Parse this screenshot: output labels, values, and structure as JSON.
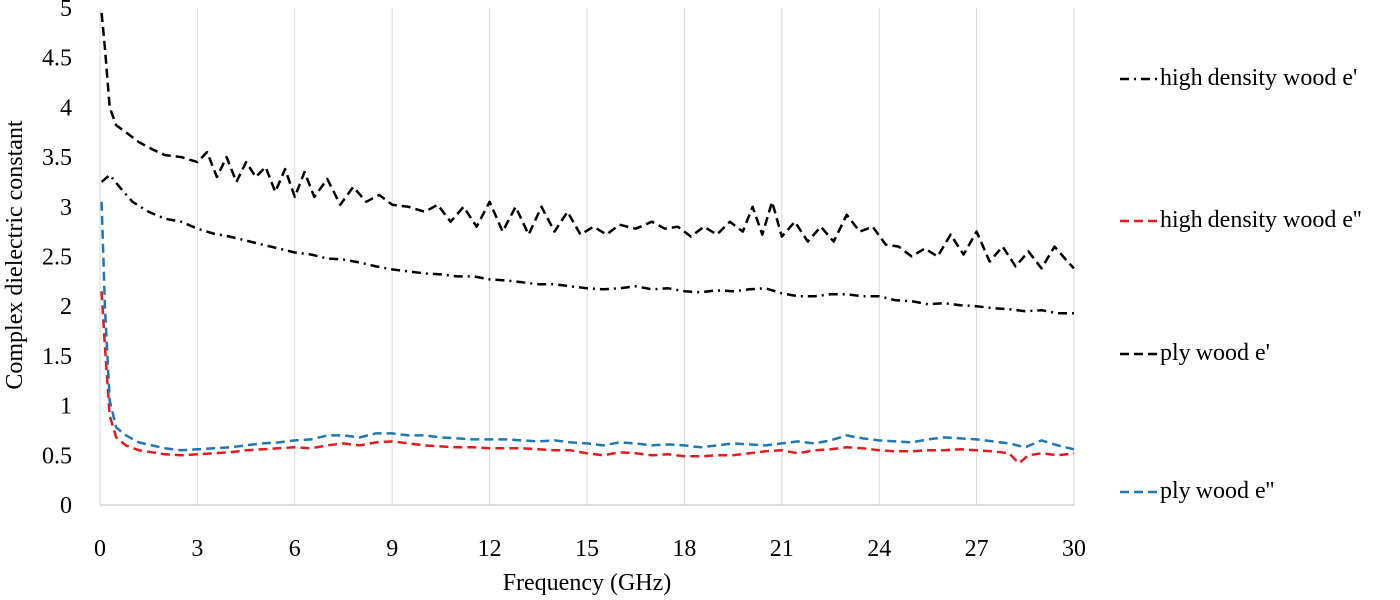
{
  "chart_data": {
    "type": "line",
    "title": "",
    "xlabel": "Frequency (GHz)",
    "ylabel": "Complex dielectric constant",
    "xlim": [
      0,
      30
    ],
    "ylim": [
      0,
      5
    ],
    "xticks": [
      0,
      3,
      6,
      9,
      12,
      15,
      18,
      21,
      24,
      27,
      30
    ],
    "yticks": [
      0,
      0.5,
      1,
      1.5,
      2,
      2.5,
      3,
      3.5,
      4,
      4.5,
      5
    ],
    "ytick_labels": [
      "0",
      "0.5",
      "1",
      "1.5",
      "2",
      "2.5",
      "3",
      "3.5",
      "4",
      "4.5",
      "5"
    ],
    "grid": "vertical",
    "legend_position": "right",
    "series": [
      {
        "name": "high density wood e'",
        "color": "#000000",
        "dash": "dash-dot",
        "x": [
          0.05,
          0.3,
          0.6,
          1,
          1.5,
          2,
          2.5,
          3,
          3.5,
          4,
          4.5,
          5,
          5.5,
          6,
          6.5,
          7,
          7.5,
          8,
          8.5,
          9,
          9.5,
          10,
          10.5,
          11,
          11.5,
          12,
          12.5,
          13,
          13.5,
          14,
          14.5,
          15,
          15.5,
          16,
          16.5,
          17,
          17.5,
          18,
          18.5,
          19,
          19.5,
          20,
          20.5,
          21,
          21.5,
          22,
          22.5,
          23,
          23.5,
          24,
          24.5,
          25,
          25.5,
          26,
          26.5,
          27,
          27.5,
          28,
          28.5,
          29,
          29.5,
          30
        ],
        "values": [
          3.25,
          3.32,
          3.2,
          3.05,
          2.95,
          2.88,
          2.85,
          2.78,
          2.73,
          2.7,
          2.66,
          2.62,
          2.58,
          2.54,
          2.52,
          2.48,
          2.47,
          2.44,
          2.4,
          2.37,
          2.35,
          2.33,
          2.32,
          2.3,
          2.3,
          2.27,
          2.26,
          2.24,
          2.22,
          2.22,
          2.2,
          2.18,
          2.17,
          2.18,
          2.2,
          2.17,
          2.18,
          2.15,
          2.14,
          2.16,
          2.15,
          2.17,
          2.18,
          2.13,
          2.1,
          2.1,
          2.12,
          2.12,
          2.1,
          2.1,
          2.06,
          2.05,
          2.02,
          2.03,
          2.01,
          2.0,
          1.98,
          1.97,
          1.95,
          1.96,
          1.93,
          1.93
        ]
      },
      {
        "name": "high density wood e''",
        "color": "#e41a1c",
        "dash": "dash",
        "x": [
          0.05,
          0.15,
          0.3,
          0.5,
          0.8,
          1.2,
          1.6,
          2,
          2.5,
          3,
          3.5,
          4,
          4.5,
          5,
          5.5,
          6,
          6.5,
          7,
          7.5,
          8,
          8.5,
          9,
          9.5,
          10,
          10.5,
          11,
          11.5,
          12,
          12.5,
          13,
          13.5,
          14,
          14.5,
          15,
          15.5,
          16,
          16.5,
          17,
          17.5,
          18,
          18.5,
          19,
          19.5,
          20,
          20.5,
          21,
          21.5,
          22,
          22.5,
          23,
          23.5,
          24,
          24.5,
          25,
          25.5,
          26,
          26.5,
          27,
          27.5,
          28,
          28.3,
          28.6,
          29,
          29.5,
          30
        ],
        "values": [
          2.15,
          1.6,
          0.9,
          0.68,
          0.6,
          0.55,
          0.53,
          0.51,
          0.5,
          0.51,
          0.52,
          0.53,
          0.55,
          0.56,
          0.57,
          0.58,
          0.57,
          0.6,
          0.62,
          0.6,
          0.63,
          0.64,
          0.62,
          0.6,
          0.59,
          0.58,
          0.58,
          0.57,
          0.57,
          0.57,
          0.56,
          0.55,
          0.55,
          0.52,
          0.5,
          0.53,
          0.52,
          0.5,
          0.51,
          0.49,
          0.49,
          0.5,
          0.5,
          0.52,
          0.54,
          0.55,
          0.52,
          0.55,
          0.56,
          0.58,
          0.57,
          0.55,
          0.54,
          0.54,
          0.55,
          0.55,
          0.56,
          0.55,
          0.54,
          0.52,
          0.42,
          0.5,
          0.52,
          0.5,
          0.52
        ]
      },
      {
        "name": "ply wood e'",
        "color": "#000000",
        "dash": "dash",
        "x": [
          0.05,
          0.15,
          0.3,
          0.5,
          0.8,
          1.2,
          1.6,
          2,
          2.5,
          3,
          3.3,
          3.6,
          3.9,
          4.2,
          4.5,
          4.8,
          5.1,
          5.4,
          5.7,
          6,
          6.3,
          6.6,
          7,
          7.4,
          7.8,
          8.2,
          8.6,
          9,
          9.5,
          10,
          10.4,
          10.8,
          11.2,
          11.6,
          12,
          12.4,
          12.8,
          13.2,
          13.6,
          14,
          14.4,
          14.8,
          15.2,
          15.6,
          16,
          16.5,
          17,
          17.4,
          17.8,
          18.2,
          18.6,
          19,
          19.4,
          19.8,
          20.1,
          20.4,
          20.7,
          21,
          21.4,
          21.8,
          22.2,
          22.6,
          23,
          23.4,
          23.8,
          24.2,
          24.6,
          25,
          25.4,
          25.8,
          26.2,
          26.6,
          27,
          27.4,
          27.8,
          28.2,
          28.6,
          29,
          29.4,
          29.8,
          30
        ],
        "values": [
          4.95,
          4.6,
          4.0,
          3.82,
          3.75,
          3.65,
          3.58,
          3.52,
          3.5,
          3.45,
          3.55,
          3.3,
          3.5,
          3.25,
          3.45,
          3.3,
          3.4,
          3.15,
          3.38,
          3.1,
          3.35,
          3.1,
          3.28,
          3.02,
          3.2,
          3.05,
          3.12,
          3.02,
          3.0,
          2.95,
          3.02,
          2.85,
          3.0,
          2.8,
          3.05,
          2.75,
          3.0,
          2.72,
          3.0,
          2.75,
          2.95,
          2.72,
          2.8,
          2.72,
          2.82,
          2.78,
          2.85,
          2.78,
          2.8,
          2.7,
          2.8,
          2.72,
          2.85,
          2.75,
          3.0,
          2.72,
          3.05,
          2.7,
          2.85,
          2.65,
          2.8,
          2.65,
          2.92,
          2.75,
          2.8,
          2.62,
          2.6,
          2.5,
          2.58,
          2.5,
          2.72,
          2.52,
          2.75,
          2.45,
          2.6,
          2.4,
          2.55,
          2.38,
          2.6,
          2.45,
          2.38
        ]
      },
      {
        "name": "ply wood e''",
        "color": "#1f77b4",
        "dash": "dash",
        "x": [
          0.05,
          0.15,
          0.3,
          0.5,
          0.8,
          1.2,
          1.6,
          2,
          2.5,
          3,
          3.5,
          4,
          4.5,
          5,
          5.5,
          6,
          6.5,
          7,
          7.5,
          8,
          8.5,
          9,
          9.5,
          10,
          10.5,
          11,
          11.5,
          12,
          12.5,
          13,
          13.5,
          14,
          14.5,
          15,
          15.5,
          16,
          16.5,
          17,
          17.5,
          18,
          18.5,
          19,
          19.5,
          20,
          20.5,
          21,
          21.5,
          22,
          22.5,
          23,
          23.5,
          24,
          24.5,
          25,
          25.5,
          26,
          26.5,
          27,
          27.5,
          28,
          28.5,
          29,
          29.5,
          30
        ],
        "values": [
          3.05,
          2.0,
          1.05,
          0.78,
          0.7,
          0.63,
          0.6,
          0.57,
          0.55,
          0.56,
          0.57,
          0.58,
          0.6,
          0.62,
          0.63,
          0.65,
          0.66,
          0.7,
          0.7,
          0.68,
          0.72,
          0.72,
          0.7,
          0.7,
          0.68,
          0.67,
          0.66,
          0.66,
          0.66,
          0.65,
          0.64,
          0.65,
          0.63,
          0.62,
          0.6,
          0.63,
          0.62,
          0.6,
          0.61,
          0.6,
          0.58,
          0.6,
          0.62,
          0.61,
          0.6,
          0.62,
          0.64,
          0.62,
          0.65,
          0.7,
          0.67,
          0.65,
          0.64,
          0.63,
          0.66,
          0.68,
          0.67,
          0.66,
          0.64,
          0.62,
          0.58,
          0.65,
          0.6,
          0.56
        ]
      }
    ]
  },
  "legend": [
    {
      "prefix": "high",
      "rest": "density wood e'"
    },
    {
      "prefix": "high",
      "rest": "density wood e''"
    },
    {
      "prefix": "ply",
      "rest": "wood e'"
    },
    {
      "prefix": "ply",
      "rest": "wood e''"
    }
  ]
}
